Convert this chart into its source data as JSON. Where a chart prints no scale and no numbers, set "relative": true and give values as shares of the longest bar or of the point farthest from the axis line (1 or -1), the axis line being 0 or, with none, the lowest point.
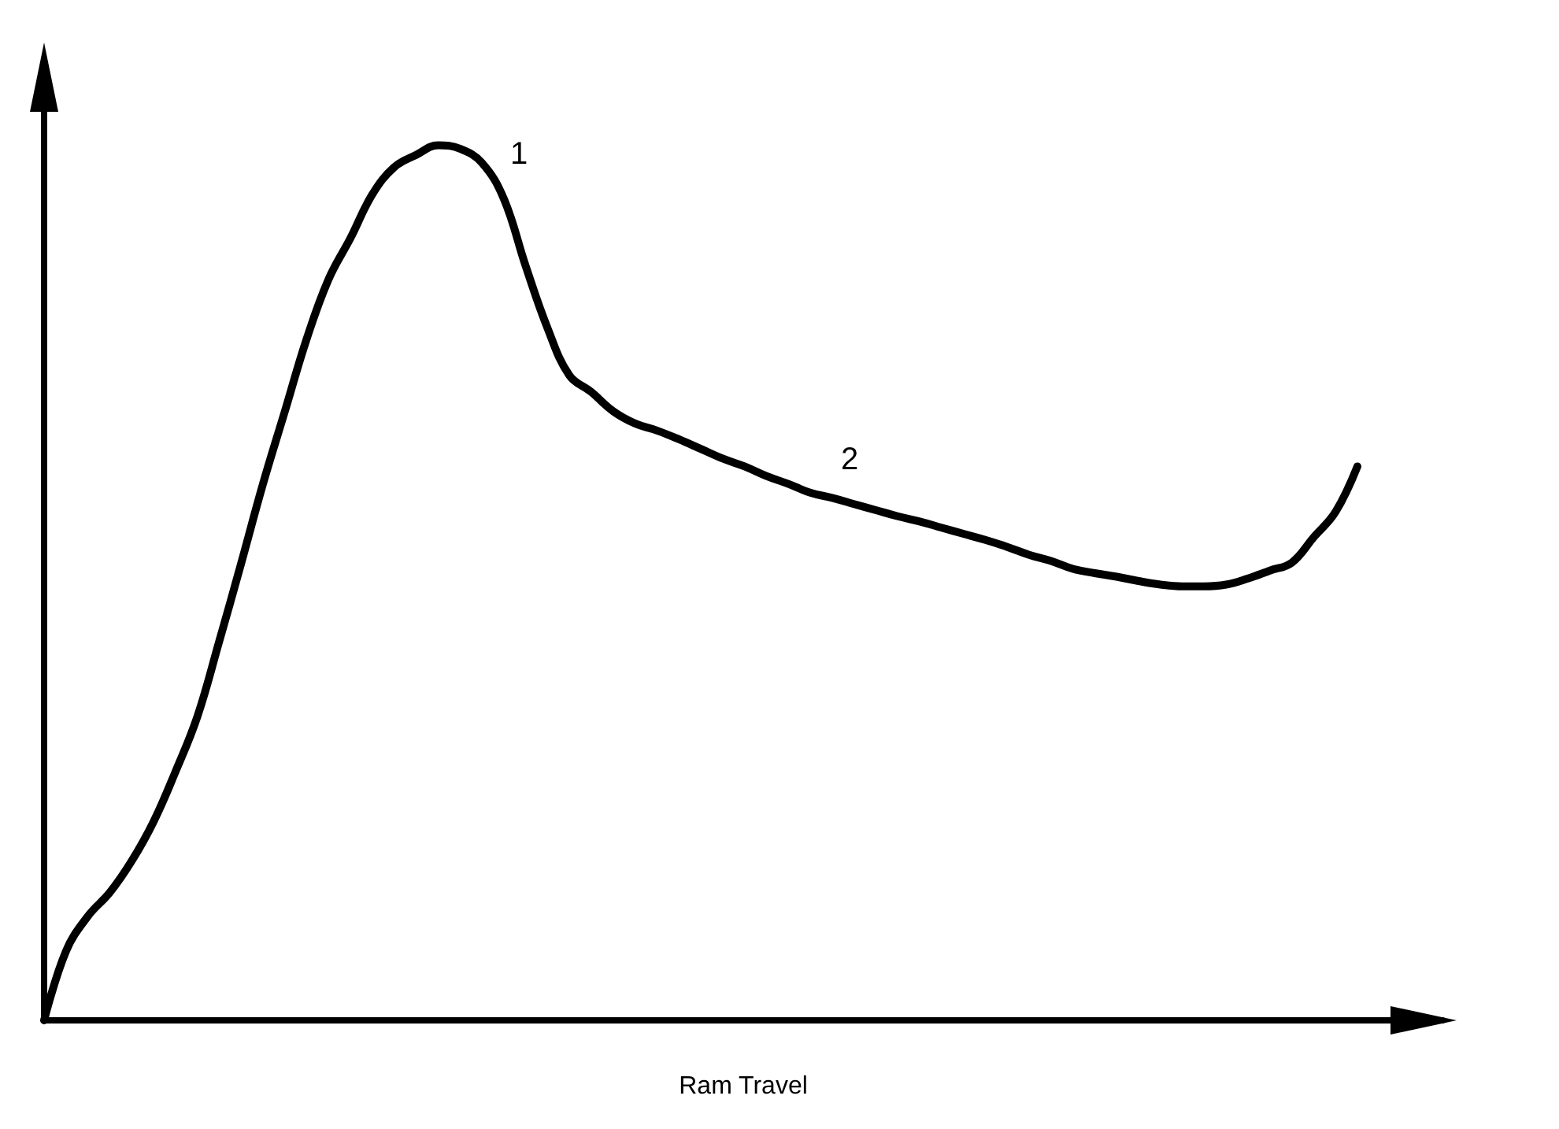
{
  "chart_data": {
    "type": "line",
    "relative": true,
    "xlabel": "Ram Travel",
    "categories": [
      null,
      null,
      null,
      null,
      null,
      null,
      null,
      null,
      null,
      null,
      null,
      null,
      null,
      null,
      null,
      null,
      null,
      null,
      null,
      null,
      null,
      null,
      null,
      null,
      null,
      null,
      null,
      null,
      null,
      null,
      null,
      null,
      null,
      null,
      null,
      null,
      null,
      null,
      null,
      null,
      null,
      null,
      null,
      null,
      null,
      null,
      null,
      null,
      null,
      null,
      null,
      null,
      null,
      null,
      null,
      null,
      null,
      null,
      null,
      null,
      null
    ],
    "series": [
      {
        "color": "#000000",
        "values": [
          0,
          0.079,
          0.119,
          0.146,
          0.182,
          0.227,
          0.284,
          0.347,
          0.433,
          0.522,
          0.613,
          0.696,
          0.779,
          0.847,
          0.894,
          0.944,
          0.975,
          0.989,
          1,
          0.996,
          0.98,
          0.939,
          0.862,
          0.791,
          0.737,
          0.718,
          0.696,
          0.682,
          0.674,
          0.664,
          0.653,
          0.642,
          0.633,
          0.622,
          0.613,
          0.603,
          0.597,
          0.59,
          0.583,
          0.576,
          0.57,
          0.563,
          0.556,
          0.549,
          0.541,
          0.532,
          0.525,
          0.516,
          0.511,
          0.507,
          0.502,
          0.498,
          0.496,
          0.496,
          0.498,
          0.505,
          0.514,
          0.523,
          0.552,
          0.581,
          0.633
        ]
      }
    ],
    "annotations": [
      "1",
      "2"
    ],
    "marker": "none",
    "line_style": "solid"
  }
}
